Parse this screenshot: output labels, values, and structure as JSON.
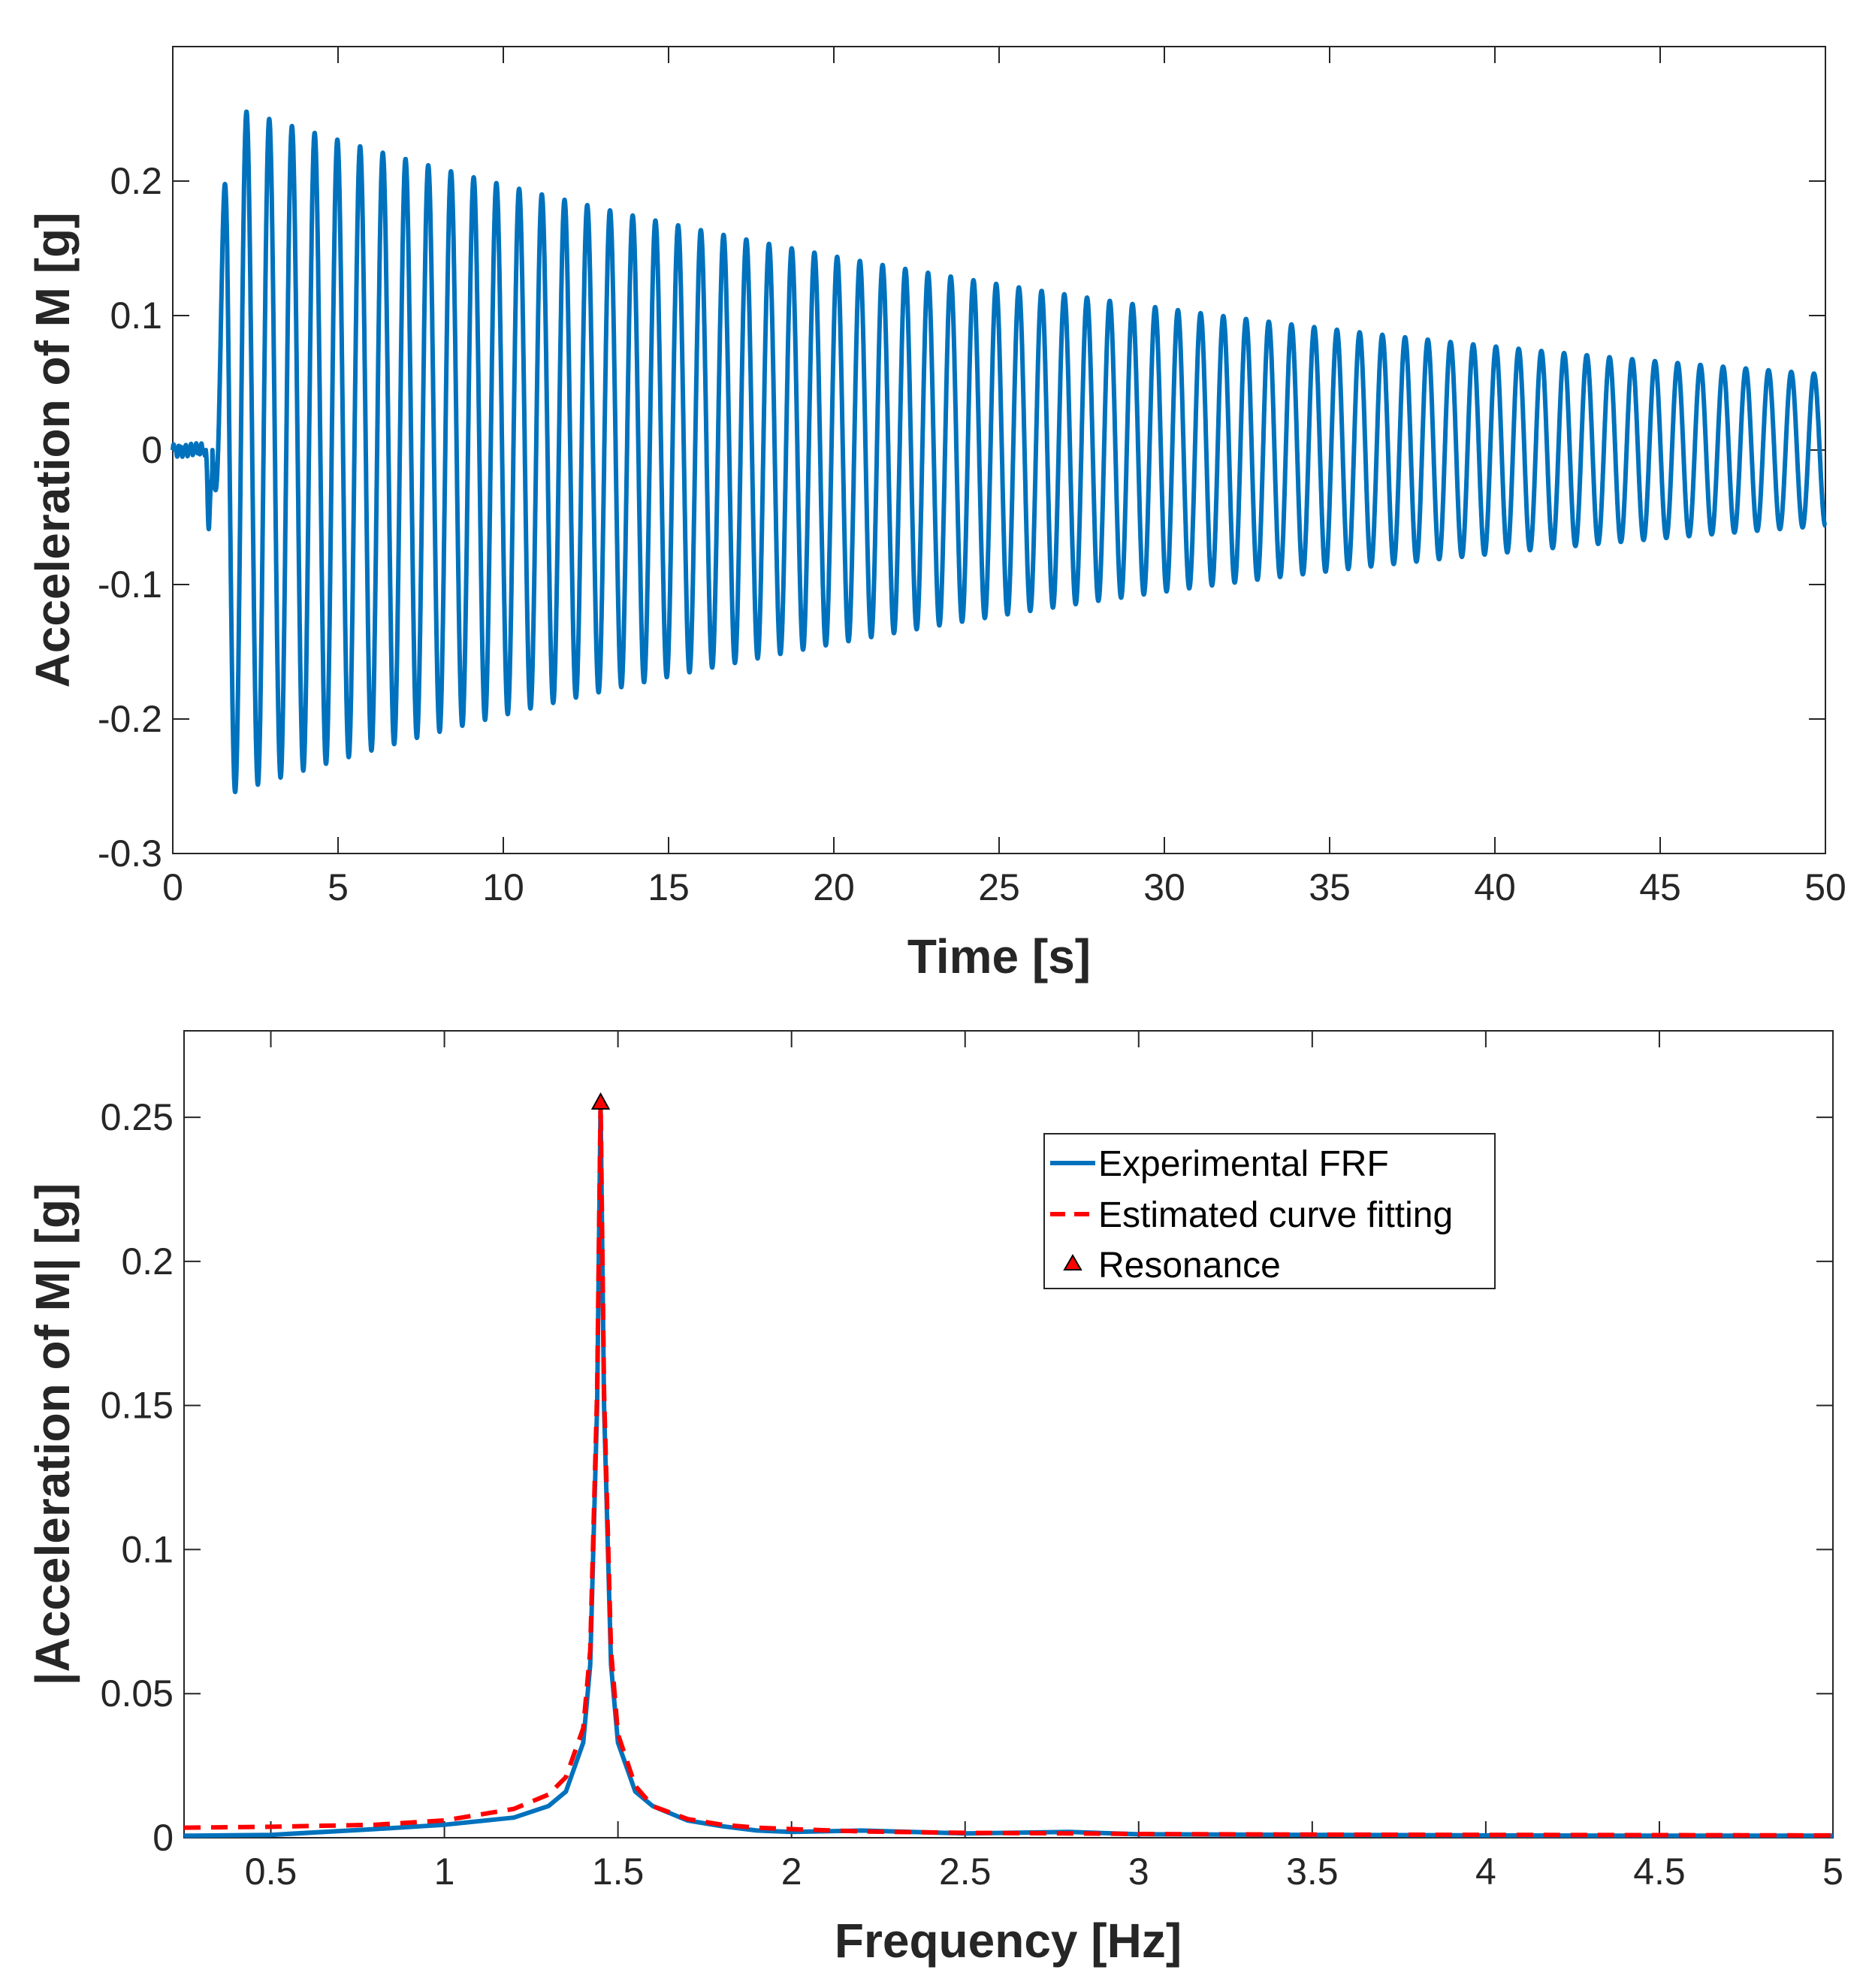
{
  "chart_data": [
    {
      "type": "line",
      "xlabel": "Time [s]",
      "ylabel": "Acceleration of M [g]",
      "xlim": [
        0,
        50
      ],
      "ylim": [
        -0.3,
        0.3
      ],
      "xticks": [
        0,
        5,
        10,
        15,
        20,
        25,
        30,
        35,
        40,
        45,
        50
      ],
      "xtick_labels": [
        "0",
        "5",
        "10",
        "15",
        "20",
        "25",
        "30",
        "35",
        "40",
        "45",
        "50"
      ],
      "yticks": [
        -0.3,
        -0.2,
        -0.1,
        0,
        0.1,
        0.2
      ],
      "ytick_labels": [
        "-0.3",
        "-0.2",
        "-0.1",
        "0",
        "0.1",
        "0.2"
      ],
      "grid": false,
      "series": [
        {
          "name": "Acceleration of M",
          "color": "#0072BD",
          "signal": {
            "kind": "decaying-sine",
            "impact_time_s": 1.2,
            "frequency_hz": 1.455,
            "peak_amplitude_g": 0.255,
            "final_amplitude_g": 0.057,
            "end_time_s": 50
          }
        }
      ]
    },
    {
      "type": "line",
      "xlabel": "Frequency [Hz]",
      "ylabel": "|Acceleration of M| [g]",
      "xlim": [
        0.25,
        5
      ],
      "ylim": [
        0,
        0.28
      ],
      "xticks": [
        0.5,
        1,
        1.5,
        2,
        2.5,
        3,
        3.5,
        4,
        4.5,
        5
      ],
      "xtick_labels": [
        "0.5",
        "1",
        "1.5",
        "2",
        "2.5",
        "3",
        "3.5",
        "4",
        "4.5",
        "5"
      ],
      "yticks": [
        0,
        0.05,
        0.1,
        0.15,
        0.2,
        0.25
      ],
      "ytick_labels": [
        "0",
        "0.05",
        "0.1",
        "0.15",
        "0.2",
        "0.25"
      ],
      "grid": false,
      "legend_position": "top-right",
      "series": [
        {
          "name": "Experimental FRF",
          "color": "#0072BD",
          "style": "solid",
          "x": [
            0.25,
            0.5,
            0.8,
            1.0,
            1.2,
            1.3,
            1.35,
            1.4,
            1.42,
            1.44,
            1.45,
            1.46,
            1.48,
            1.5,
            1.55,
            1.6,
            1.7,
            1.8,
            1.9,
            2.0,
            2.2,
            2.5,
            2.8,
            3.0,
            3.5,
            4.0,
            4.5,
            5.0
          ],
          "y": [
            0.0007,
            0.001,
            0.003,
            0.0045,
            0.007,
            0.011,
            0.016,
            0.033,
            0.06,
            0.15,
            0.255,
            0.15,
            0.06,
            0.033,
            0.016,
            0.011,
            0.006,
            0.004,
            0.0025,
            0.002,
            0.0025,
            0.0015,
            0.002,
            0.0012,
            0.001,
            0.0008,
            0.0007,
            0.0007
          ]
        },
        {
          "name": "Estimated curve fitting",
          "color": "#FF0000",
          "style": "dashed",
          "x": [
            0.25,
            0.5,
            0.8,
            1.0,
            1.2,
            1.3,
            1.35,
            1.4,
            1.42,
            1.44,
            1.45,
            1.46,
            1.48,
            1.5,
            1.55,
            1.6,
            1.7,
            1.8,
            1.9,
            2.0,
            2.2,
            2.5,
            2.8,
            3.0,
            3.5,
            4.0,
            4.5,
            5.0
          ],
          "y": [
            0.0035,
            0.0038,
            0.0045,
            0.006,
            0.01,
            0.015,
            0.021,
            0.038,
            0.065,
            0.155,
            0.255,
            0.155,
            0.065,
            0.036,
            0.018,
            0.011,
            0.0065,
            0.0045,
            0.0035,
            0.003,
            0.0022,
            0.0017,
            0.0015,
            0.0013,
            0.0011,
            0.001,
            0.0009,
            0.0008
          ]
        },
        {
          "name": "Resonance",
          "color": "#FF0000",
          "style": "marker-triangle",
          "x": [
            1.45
          ],
          "y": [
            0.255
          ]
        }
      ]
    }
  ]
}
